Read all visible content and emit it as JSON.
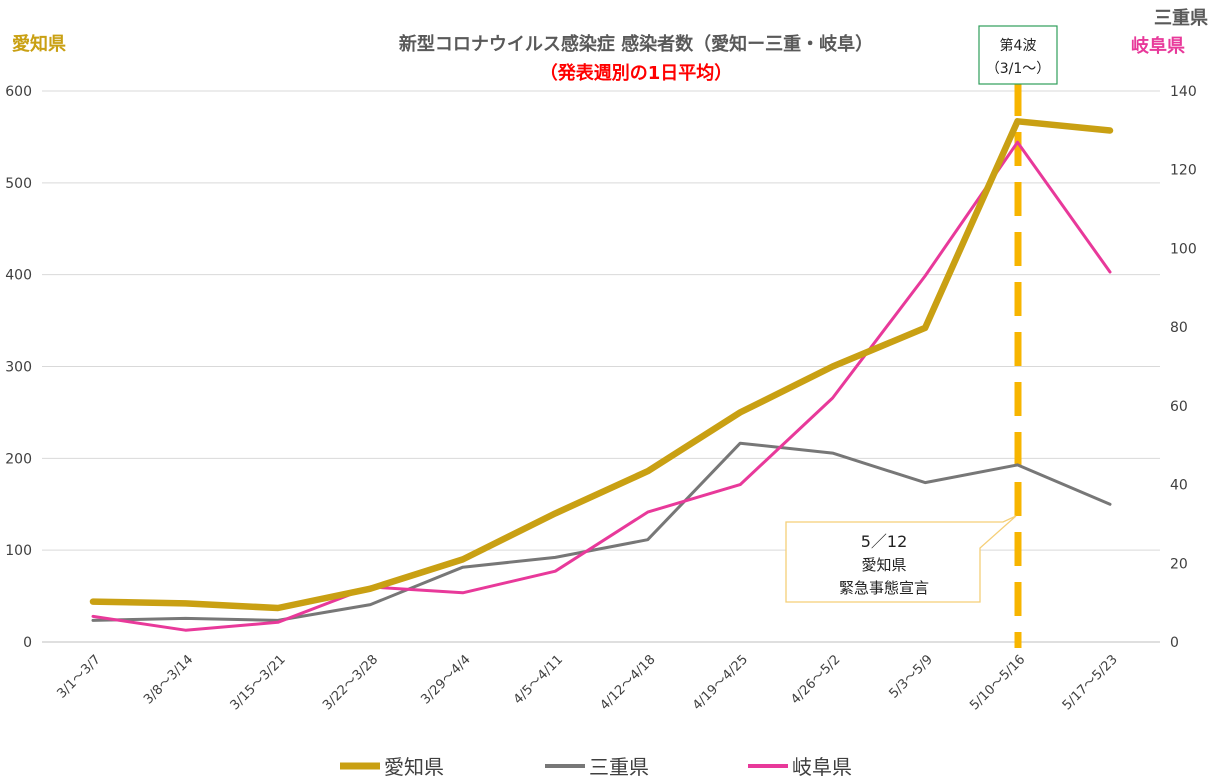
{
  "chart_data": {
    "type": "line",
    "title": "新型コロナウイルス感染症 感染者数（愛知ー三重・岐阜）",
    "subtitle": "（発表週別の1日平均）",
    "left_axis_label": "愛知県",
    "right_axis_label_1": "三重県",
    "right_axis_label_2": "岐阜県",
    "categories": [
      "3/1～3/7",
      "3/8～3/14",
      "3/15～3/21",
      "3/22～3/28",
      "3/29～4/4",
      "4/5～4/11",
      "4/12～4/18",
      "4/19～4/25",
      "4/26～5/2",
      "5/3～5/9",
      "5/10～5/16",
      "5/17～5/23"
    ],
    "y_left": {
      "min": 0,
      "max": 600,
      "ticks": [
        0,
        100,
        200,
        300,
        400,
        500,
        600
      ]
    },
    "y_right": {
      "min": 0,
      "max": 140,
      "ticks": [
        0,
        20,
        40,
        60,
        80,
        100,
        120,
        140
      ]
    },
    "grid": true,
    "legend_position": "bottom",
    "series": [
      {
        "name": "愛知県",
        "axis": "left",
        "color": "#c9a013",
        "values": [
          44,
          42,
          37,
          58,
          90,
          140,
          186,
          250,
          300,
          342,
          567,
          557
        ]
      },
      {
        "name": "三重県",
        "axis": "right",
        "color": "#777777",
        "values": [
          5.5,
          6,
          5.5,
          9.5,
          19,
          21.5,
          26,
          50.5,
          48,
          40.5,
          45,
          35
        ]
      },
      {
        "name": "岐阜県",
        "axis": "right",
        "color": "#e8399a",
        "values": [
          6.5,
          3,
          5,
          14,
          12.5,
          18,
          33,
          40,
          62,
          93,
          127,
          94
        ]
      }
    ],
    "annotations": {
      "wave_line": "#f7b500",
      "wave_label_1": "第4波",
      "wave_label_2": "（3/1～）",
      "decl_line_1": "5／12",
      "decl_line_2": "愛知県",
      "decl_line_3": "緊急事態宣言"
    }
  }
}
